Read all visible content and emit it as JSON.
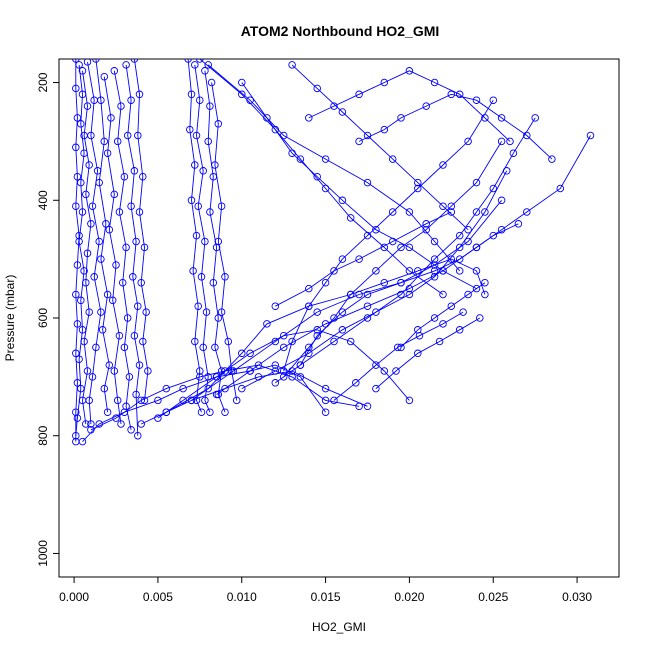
{
  "chart_data": {
    "type": "line",
    "title": "ATOM2 Northbound HO2_GMI",
    "xlabel": "HO2_GMI",
    "ylabel": "Pressure (mbar)",
    "xlim": [
      -0.0009,
      0.0325
    ],
    "ylim": [
      1040,
      160
    ],
    "y_reversed": true,
    "x_ticks": [
      0.0,
      0.005,
      0.01,
      0.015,
      0.02,
      0.025,
      0.03
    ],
    "x_tick_labels": [
      "0.000",
      "0.005",
      "0.010",
      "0.015",
      "0.020",
      "0.025",
      "0.030"
    ],
    "y_ticks": [
      200,
      400,
      600,
      800,
      1000
    ],
    "y_tick_labels": [
      "200",
      "400",
      "600",
      "800",
      "1000"
    ],
    "color": "#0000ff",
    "marker": "open-circle",
    "grid": false,
    "series": [
      {
        "x": [
          0.0001,
          0.0001,
          0.0002,
          0.0001,
          0.0002,
          0.0001,
          0.0003,
          0.0002,
          0.0001,
          0.0002,
          0.0001,
          0.0002,
          0.0001,
          0.0001
        ],
        "y": [
          160,
          210,
          260,
          310,
          360,
          410,
          460,
          510,
          560,
          610,
          660,
          710,
          760,
          810
        ]
      },
      {
        "x": [
          0.0003,
          0.0005,
          0.0004,
          0.0006,
          0.0004,
          0.0005,
          0.0003,
          0.0006,
          0.0004,
          0.0005,
          0.0003,
          0.0004,
          0.0002,
          0.0001
        ],
        "y": [
          170,
          220,
          270,
          320,
          370,
          420,
          470,
          520,
          570,
          620,
          670,
          720,
          770,
          800
        ]
      },
      {
        "x": [
          0.0005,
          0.0008,
          0.0006,
          0.0009,
          0.0007,
          0.001,
          0.0008,
          0.0007,
          0.0009,
          0.0006,
          0.0008,
          0.0005,
          0.0007
        ],
        "y": [
          180,
          240,
          290,
          340,
          390,
          440,
          490,
          540,
          590,
          640,
          690,
          740,
          780
        ]
      },
      {
        "x": [
          0.0008,
          0.0012,
          0.001,
          0.0014,
          0.0011,
          0.0015,
          0.0012,
          0.0016,
          0.0013,
          0.0011,
          0.0009,
          0.001
        ],
        "y": [
          165,
          230,
          290,
          350,
          410,
          470,
          530,
          590,
          650,
          700,
          740,
          780
        ]
      },
      {
        "x": [
          0.0013,
          0.0016,
          0.0018,
          0.0015,
          0.0019,
          0.0016,
          0.002,
          0.0017,
          0.0021,
          0.0018,
          0.002
        ],
        "y": [
          160,
          230,
          300,
          370,
          440,
          500,
          560,
          620,
          680,
          720,
          760
        ]
      },
      {
        "x": [
          0.0018,
          0.0022,
          0.002,
          0.0024,
          0.0021,
          0.0025,
          0.0023,
          0.0027,
          0.0024,
          0.0026,
          0.0028
        ],
        "y": [
          190,
          260,
          320,
          390,
          450,
          510,
          570,
          630,
          690,
          740,
          780
        ]
      },
      {
        "x": [
          0.0024,
          0.0028,
          0.0026,
          0.003,
          0.0027,
          0.0031,
          0.0029,
          0.0032,
          0.003,
          0.0033,
          0.0031,
          0.0034
        ],
        "y": [
          180,
          240,
          300,
          360,
          420,
          480,
          540,
          600,
          650,
          700,
          750,
          790
        ]
      },
      {
        "x": [
          0.0031,
          0.0034,
          0.0032,
          0.0036,
          0.0034,
          0.0037,
          0.0035,
          0.0038,
          0.0036,
          0.0039,
          0.0037,
          0.0038
        ],
        "y": [
          170,
          230,
          290,
          350,
          410,
          470,
          530,
          580,
          630,
          680,
          730,
          800
        ]
      },
      {
        "x": [
          0.0036,
          0.0039,
          0.0038,
          0.0041,
          0.0039,
          0.0042,
          0.004,
          0.0043,
          0.0041,
          0.0044,
          0.0042
        ],
        "y": [
          160,
          220,
          290,
          360,
          420,
          480,
          540,
          590,
          640,
          690,
          740
        ]
      },
      {
        "x": [
          0.0068,
          0.007,
          0.0069,
          0.0072,
          0.007,
          0.0073,
          0.0071,
          0.0074,
          0.0072,
          0.0075,
          0.0073,
          0.0076
        ],
        "y": [
          160,
          220,
          280,
          340,
          400,
          460,
          520,
          580,
          640,
          690,
          740,
          760
        ]
      },
      {
        "x": [
          0.0072,
          0.0075,
          0.0073,
          0.0077,
          0.0074,
          0.0078,
          0.0076,
          0.0079,
          0.0077,
          0.008,
          0.0078,
          0.0081
        ],
        "y": [
          170,
          230,
          290,
          350,
          410,
          470,
          530,
          590,
          650,
          700,
          740,
          760
        ]
      },
      {
        "x": [
          0.0078,
          0.0081,
          0.008,
          0.0083,
          0.0081,
          0.0085,
          0.0083,
          0.0086,
          0.0084,
          0.0088,
          0.0086,
          0.009
        ],
        "y": [
          180,
          240,
          300,
          360,
          420,
          480,
          540,
          600,
          650,
          690,
          730,
          760
        ]
      },
      {
        "x": [
          0.0082,
          0.0086,
          0.0084,
          0.0088,
          0.0086,
          0.009,
          0.0088,
          0.0092,
          0.0094,
          0.0097
        ],
        "y": [
          200,
          270,
          340,
          410,
          470,
          530,
          590,
          640,
          690,
          740
        ]
      },
      {
        "x": [
          0.0005,
          0.0015,
          0.003,
          0.005,
          0.0065,
          0.0085,
          0.0105,
          0.012,
          0.0135,
          0.015
        ],
        "y": [
          810,
          780,
          760,
          740,
          720,
          700,
          690,
          680,
          700,
          760
        ]
      },
      {
        "x": [
          0.001,
          0.0025,
          0.004,
          0.0055,
          0.0075,
          0.009,
          0.011,
          0.013,
          0.015,
          0.017
        ],
        "y": [
          790,
          770,
          740,
          720,
          700,
          690,
          680,
          700,
          740,
          750
        ]
      },
      {
        "x": [
          0.004,
          0.0055,
          0.007,
          0.009,
          0.011,
          0.013,
          0.015,
          0.0175
        ],
        "y": [
          780,
          760,
          740,
          720,
          700,
          690,
          720,
          750
        ]
      },
      {
        "x": [
          0.005,
          0.0065,
          0.0085,
          0.0105,
          0.0125,
          0.0145,
          0.0165,
          0.0185,
          0.02
        ],
        "y": [
          770,
          740,
          700,
          660,
          630,
          620,
          640,
          690,
          740
        ]
      },
      {
        "x": [
          0.0055,
          0.008,
          0.01,
          0.0115,
          0.014,
          0.0165,
          0.0185,
          0.0205,
          0.0225,
          0.024,
          0.0245
        ],
        "y": [
          760,
          720,
          660,
          610,
          580,
          560,
          540,
          520,
          500,
          520,
          560
        ]
      },
      {
        "x": [
          0.007,
          0.0095,
          0.012,
          0.0145,
          0.017,
          0.0195,
          0.0215,
          0.023,
          0.024,
          0.025,
          0.0265
        ],
        "y": [
          740,
          690,
          640,
          590,
          560,
          540,
          520,
          500,
          480,
          460,
          440
        ]
      },
      {
        "x": [
          0.0085,
          0.0105,
          0.0125,
          0.015,
          0.0175,
          0.02,
          0.022,
          0.024,
          0.0255,
          0.027,
          0.029,
          0.0308
        ],
        "y": [
          730,
          690,
          650,
          610,
          580,
          550,
          520,
          480,
          450,
          420,
          380,
          290
        ]
      },
      {
        "x": [
          0.01,
          0.012,
          0.014,
          0.016,
          0.018,
          0.02,
          0.0215,
          0.023,
          0.0245,
          0.0258
        ],
        "y": [
          720,
          690,
          660,
          620,
          590,
          560,
          530,
          480,
          420,
          350
        ]
      },
      {
        "x": [
          0.012,
          0.0135,
          0.0155,
          0.0175,
          0.0195,
          0.0215,
          0.023,
          0.024,
          0.025,
          0.0262,
          0.0275
        ],
        "y": [
          710,
          680,
          640,
          600,
          560,
          500,
          460,
          420,
          380,
          320,
          260
        ]
      },
      {
        "x": [
          0.0125,
          0.014,
          0.0155,
          0.0165,
          0.018,
          0.0195,
          0.021,
          0.0225,
          0.024,
          0.0255
        ],
        "y": [
          700,
          650,
          600,
          560,
          520,
          480,
          450,
          410,
          370,
          300
        ]
      },
      {
        "x": [
          0.0125,
          0.013,
          0.014,
          0.015,
          0.016,
          0.0175,
          0.019,
          0.0205,
          0.022,
          0.0235,
          0.025
        ],
        "y": [
          690,
          640,
          580,
          540,
          500,
          460,
          420,
          380,
          340,
          300,
          230
        ]
      },
      {
        "x": [
          0.0135,
          0.0145,
          0.016,
          0.0175,
          0.0195,
          0.0215,
          0.0235,
          0.0255
        ],
        "y": [
          680,
          630,
          590,
          560,
          540,
          510,
          470,
          400
        ]
      },
      {
        "x": [
          0.008,
          0.0105,
          0.0125,
          0.015,
          0.0175,
          0.02,
          0.0215,
          0.023
        ],
        "y": [
          170,
          230,
          290,
          330,
          370,
          420,
          470,
          520
        ]
      },
      {
        "x": [
          0.0075,
          0.01,
          0.012,
          0.0135,
          0.015,
          0.0165,
          0.0185,
          0.02,
          0.022
        ],
        "y": [
          160,
          220,
          280,
          330,
          380,
          430,
          480,
          520,
          560
        ]
      },
      {
        "x": [
          0.01,
          0.0115,
          0.013,
          0.0145,
          0.016,
          0.018,
          0.02,
          0.022,
          0.024
        ],
        "y": [
          200,
          260,
          320,
          360,
          400,
          450,
          480,
          520,
          550
        ]
      },
      {
        "x": [
          0.014,
          0.0155,
          0.017,
          0.0185,
          0.02,
          0.0215,
          0.023,
          0.0245,
          0.026
        ],
        "y": [
          260,
          240,
          220,
          200,
          180,
          200,
          220,
          260,
          300
        ]
      },
      {
        "x": [
          0.017,
          0.0185,
          0.0195,
          0.021,
          0.0225,
          0.024,
          0.0255,
          0.027,
          0.0285
        ],
        "y": [
          300,
          280,
          260,
          240,
          220,
          230,
          260,
          290,
          330
        ]
      },
      {
        "x": [
          0.013,
          0.0145,
          0.016,
          0.0175,
          0.019,
          0.0205,
          0.022,
          0.0235
        ],
        "y": [
          170,
          210,
          250,
          290,
          330,
          370,
          410,
          450
        ]
      },
      {
        "x": [
          0.012,
          0.014,
          0.0155,
          0.017,
          0.019,
          0.021,
          0.0225
        ],
        "y": [
          580,
          550,
          520,
          500,
          470,
          440,
          420
        ]
      },
      {
        "x": [
          0.0195,
          0.0205,
          0.0215,
          0.0225,
          0.0235,
          0.0245
        ],
        "y": [
          650,
          620,
          600,
          580,
          560,
          540
        ]
      },
      {
        "x": [
          0.018,
          0.0192,
          0.0205,
          0.0218,
          0.023,
          0.0242
        ],
        "y": [
          720,
          690,
          660,
          640,
          620,
          600
        ]
      },
      {
        "x": [
          0.0155,
          0.0168,
          0.018,
          0.0193,
          0.0206,
          0.022,
          0.0232
        ],
        "y": [
          740,
          710,
          680,
          650,
          630,
          610,
          590
        ]
      }
    ]
  }
}
